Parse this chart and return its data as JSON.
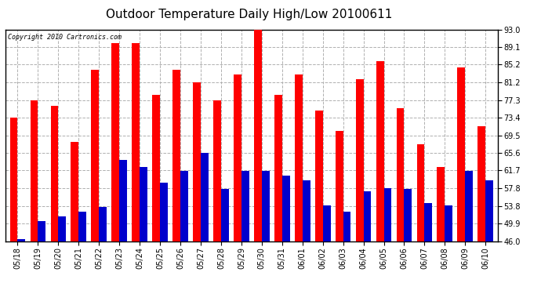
{
  "title": "Outdoor Temperature Daily High/Low 20100611",
  "copyright": "Copyright 2010 Cartronics.com",
  "dates": [
    "05/18",
    "05/19",
    "05/20",
    "05/21",
    "05/22",
    "05/23",
    "05/24",
    "05/25",
    "05/26",
    "05/27",
    "05/28",
    "05/29",
    "05/30",
    "05/31",
    "06/01",
    "06/02",
    "06/03",
    "06/04",
    "06/05",
    "06/06",
    "06/07",
    "06/08",
    "06/09",
    "06/10"
  ],
  "highs": [
    73.4,
    77.3,
    76.0,
    68.0,
    84.0,
    90.0,
    90.0,
    78.5,
    84.0,
    81.2,
    77.3,
    83.0,
    93.0,
    78.5,
    83.0,
    75.0,
    70.5,
    82.0,
    86.0,
    75.5,
    67.5,
    62.5,
    84.5,
    71.5
  ],
  "lows": [
    46.5,
    50.5,
    51.5,
    52.5,
    53.5,
    64.0,
    62.5,
    59.0,
    61.5,
    65.6,
    57.5,
    61.5,
    61.5,
    60.5,
    59.5,
    54.0,
    52.5,
    57.0,
    57.8,
    57.5,
    54.5,
    54.0,
    61.5,
    59.5
  ],
  "ylim": [
    46.0,
    93.0
  ],
  "yticks": [
    46.0,
    49.9,
    53.8,
    57.8,
    61.7,
    65.6,
    69.5,
    73.4,
    77.3,
    81.2,
    85.2,
    89.1,
    93.0
  ],
  "ytick_labels": [
    "46.0",
    "49.9",
    "53.8",
    "57.8",
    "61.7",
    "65.6",
    "69.5",
    "73.4",
    "77.3",
    "81.2",
    "85.2",
    "89.1",
    "93.0"
  ],
  "bar_width": 0.38,
  "high_color": "#ff0000",
  "low_color": "#0000cc",
  "bg_color": "#ffffff",
  "grid_color": "#b0b0b0",
  "title_fontsize": 11,
  "copyright_fontsize": 6,
  "tick_fontsize": 7
}
